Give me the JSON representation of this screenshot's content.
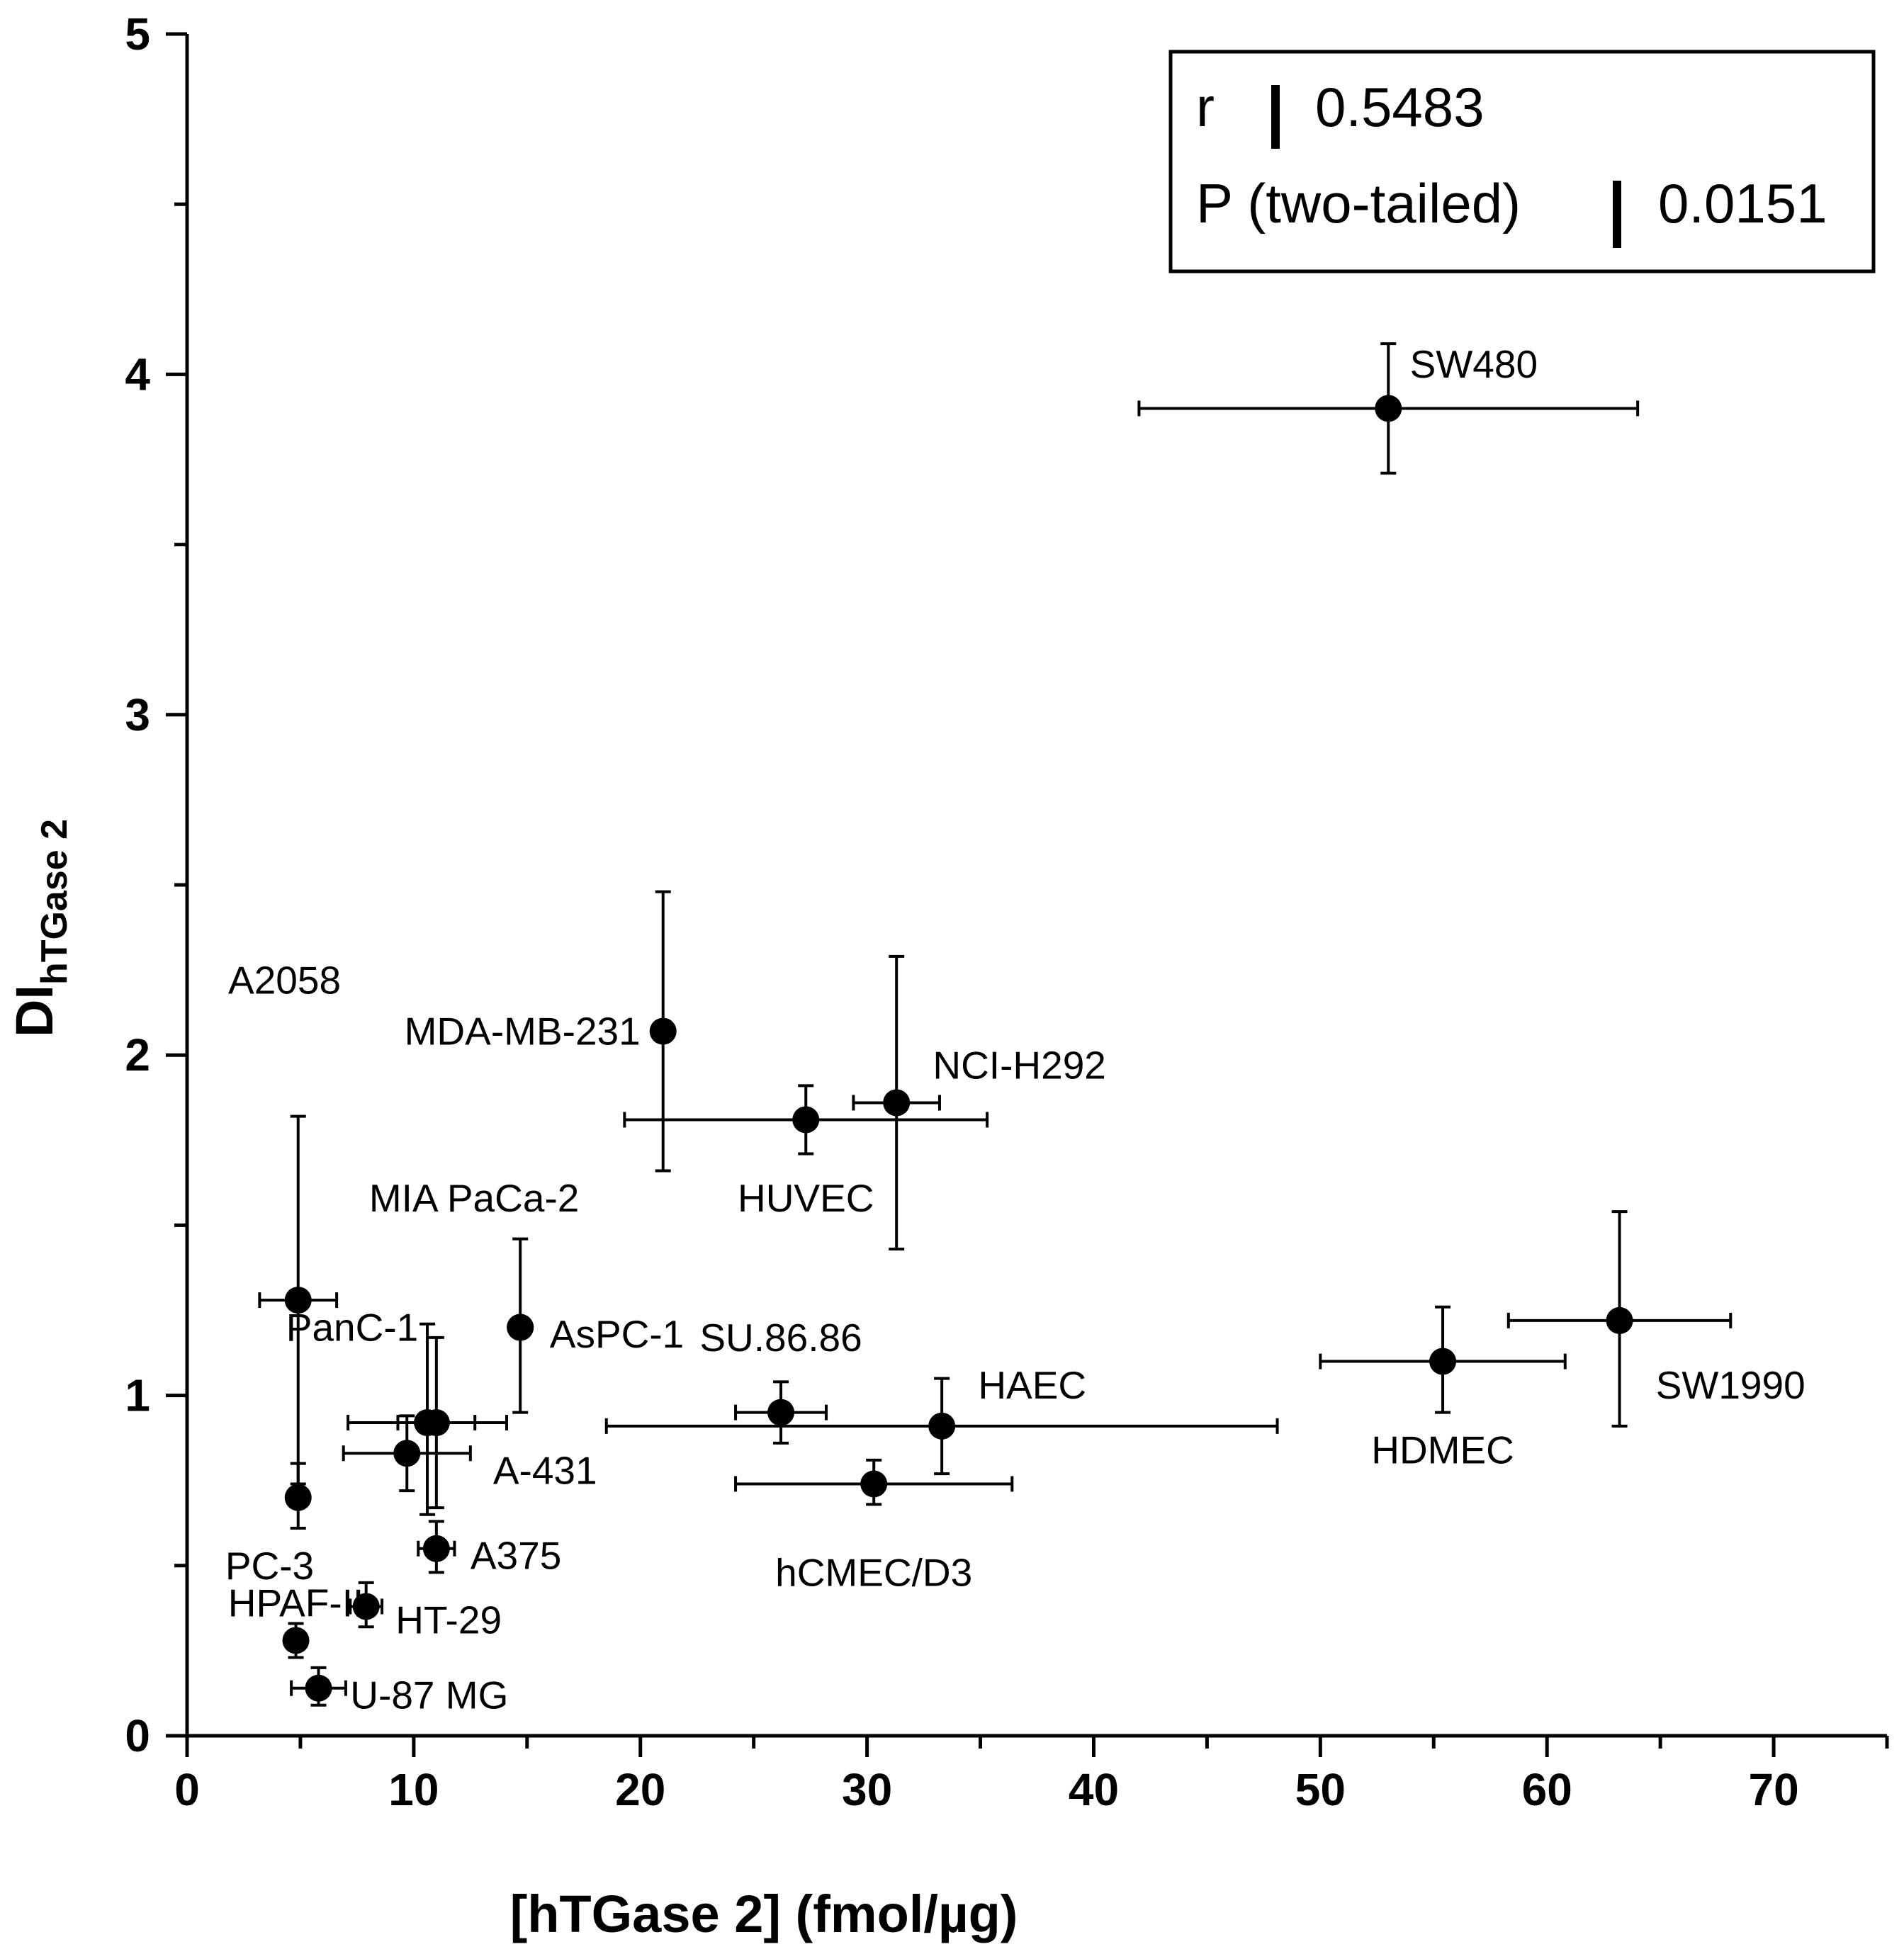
{
  "chart_data": {
    "type": "scatter",
    "xlabel": "[hTGase 2] (fmol/µg)",
    "ylabel_main": "DI",
    "ylabel_sub": "hTGase 2",
    "xlim": [
      0,
      75
    ],
    "ylim": [
      0,
      5
    ],
    "x_ticks": [
      0,
      10,
      20,
      30,
      40,
      50,
      60,
      70
    ],
    "y_ticks": [
      0,
      1,
      2,
      3,
      4,
      5
    ],
    "x_minor_step": 5,
    "y_minor_step": 0.5,
    "stats": {
      "r_label": "r",
      "r_value": "0.5483",
      "p_label": "P (two-tailed)",
      "p_value": "0.0151"
    },
    "points": [
      {
        "name": "SW480",
        "x": 53.0,
        "y": 3.9,
        "xerr": [
          42.0,
          64.0
        ],
        "yerr": [
          3.71,
          4.09
        ],
        "label_anchor": "start",
        "label_dx": 0.95,
        "label_dy": 0.13
      },
      {
        "name": "MDA-MB-231",
        "x": 21.0,
        "y": 2.07,
        "xerr": null,
        "yerr": [
          1.66,
          2.48
        ],
        "label_anchor": "end",
        "label_dx": -1.0,
        "label_dy": 0.0
      },
      {
        "name": "HUVEC",
        "x": 27.3,
        "y": 1.81,
        "xerr": [
          19.3,
          35.3
        ],
        "yerr": [
          1.71,
          1.91
        ],
        "label_anchor": "middle",
        "label_dx": 0.0,
        "label_dy": -0.23
      },
      {
        "name": "NCI-H292",
        "x": 31.3,
        "y": 1.86,
        "xerr": [
          29.4,
          33.2
        ],
        "yerr": [
          1.43,
          2.29
        ],
        "label_anchor": "start",
        "label_dx": 1.6,
        "label_dy": 0.11
      },
      {
        "name": "A2058",
        "x": 4.9,
        "y": 1.28,
        "xerr": [
          3.2,
          6.6
        ],
        "yerr": [
          0.74,
          1.82
        ],
        "label_anchor": "middle",
        "label_dx": -0.6,
        "label_dy": 0.94
      },
      {
        "name": "MIA PaCa-2",
        "x": 14.7,
        "y": 1.2,
        "xerr": null,
        "yerr": [
          0.95,
          1.46
        ],
        "label_anchor": "end",
        "label_dx": 2.6,
        "label_dy": 0.38
      },
      {
        "name": "PanC-1",
        "x": 10.6,
        "y": 0.92,
        "xerr": [
          7.1,
          14.1
        ],
        "yerr": [
          0.65,
          1.21
        ],
        "label_anchor": "end",
        "label_dx": -0.4,
        "label_dy": 0.28
      },
      {
        "name": "AsPC-1",
        "x": 14.7,
        "y": 1.2,
        "xerr": null,
        "yerr": null,
        "label_anchor": "start",
        "label_dx": 1.3,
        "label_dy": -0.02
      },
      {
        "name": "A-431",
        "x": 9.7,
        "y": 0.83,
        "xerr": [
          6.9,
          12.5
        ],
        "yerr": [
          0.72,
          0.94
        ],
        "label_anchor": "start",
        "label_dx": 3.8,
        "label_dy": -0.05
      },
      {
        "name": "",
        "x": 11.0,
        "y": 0.92,
        "xerr": [
          9.3,
          12.7
        ],
        "yerr": [
          0.67,
          1.17
        ],
        "label_anchor": "start",
        "label_dx": 0,
        "label_dy": 0
      },
      {
        "name": "PC-3",
        "x": 4.9,
        "y": 0.7,
        "xerr": null,
        "yerr": [
          0.61,
          0.8
        ],
        "label_anchor": "end",
        "label_dx": 0.7,
        "label_dy": -0.2
      },
      {
        "name": "A375",
        "x": 11.0,
        "y": 0.55,
        "xerr": [
          10.2,
          11.8
        ],
        "yerr": [
          0.48,
          0.63
        ],
        "label_anchor": "start",
        "label_dx": 1.5,
        "label_dy": -0.02
      },
      {
        "name": "HT-29",
        "x": 7.9,
        "y": 0.38,
        "xerr": [
          7.2,
          8.6
        ],
        "yerr": [
          0.32,
          0.45
        ],
        "label_anchor": "start",
        "label_dx": 1.3,
        "label_dy": -0.04
      },
      {
        "name": "HPAF-II",
        "x": 4.8,
        "y": 0.28,
        "xerr": null,
        "yerr": [
          0.23,
          0.33
        ],
        "label_anchor": "middle",
        "label_dx": 0.0,
        "label_dy": 0.11
      },
      {
        "name": "U-87 MG",
        "x": 5.8,
        "y": 0.14,
        "xerr": [
          4.6,
          7.0
        ],
        "yerr": [
          0.09,
          0.2
        ],
        "label_anchor": "start",
        "label_dx": 1.4,
        "label_dy": -0.02
      },
      {
        "name": "SU.86.86",
        "x": 26.2,
        "y": 0.95,
        "xerr": [
          24.2,
          28.2
        ],
        "yerr": [
          0.86,
          1.04
        ],
        "label_anchor": "middle",
        "label_dx": 0.0,
        "label_dy": 0.22
      },
      {
        "name": "HAEC",
        "x": 33.3,
        "y": 0.91,
        "xerr": [
          18.5,
          48.1
        ],
        "yerr": [
          0.77,
          1.05
        ],
        "label_anchor": "start",
        "label_dx": 1.6,
        "label_dy": 0.12
      },
      {
        "name": "hCMEC/D3",
        "x": 30.3,
        "y": 0.74,
        "xerr": [
          24.2,
          36.4
        ],
        "yerr": [
          0.68,
          0.81
        ],
        "label_anchor": "middle",
        "label_dx": 0.0,
        "label_dy": -0.26
      },
      {
        "name": "HDMEC",
        "x": 55.4,
        "y": 1.1,
        "xerr": [
          50.0,
          60.8
        ],
        "yerr": [
          0.95,
          1.26
        ],
        "label_anchor": "middle",
        "label_dx": 0.0,
        "label_dy": -0.26
      },
      {
        "name": "SW1990",
        "x": 63.2,
        "y": 1.22,
        "xerr": [
          58.3,
          68.1
        ],
        "yerr": [
          0.91,
          1.54
        ],
        "label_anchor": "start",
        "label_dx": 1.6,
        "label_dy": -0.19
      }
    ]
  }
}
